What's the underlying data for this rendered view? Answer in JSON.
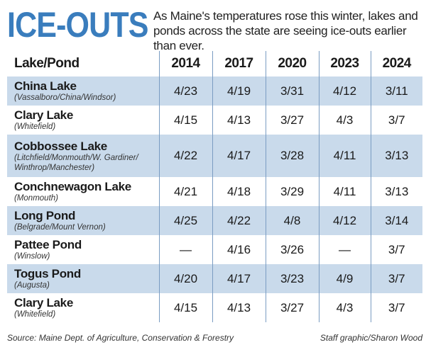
{
  "header": {
    "title": "ICE-OUTS",
    "subtitle": "As Maine's temperatures rose this winter, lakes and ponds across the state are seeing ice-outs earlier than ever."
  },
  "chart_data": {
    "type": "table",
    "columns": [
      "Lake/Pond",
      "2014",
      "2017",
      "2020",
      "2023",
      "2024"
    ],
    "rows": [
      {
        "name": "China Lake",
        "location": "(Vassalboro/China/Windsor)",
        "values": [
          "4/23",
          "4/19",
          "3/31",
          "4/12",
          "3/11"
        ]
      },
      {
        "name": "Clary Lake",
        "location": "(Whitefield)",
        "values": [
          "4/15",
          "4/13",
          "3/27",
          "4/3",
          "3/7"
        ]
      },
      {
        "name": "Cobbossee Lake",
        "location": "(Litchfield/Monmouth/W. Gardiner/ Winthrop/Manchester)",
        "values": [
          "4/22",
          "4/17",
          "3/28",
          "4/11",
          "3/13"
        ]
      },
      {
        "name": "Conchnewagon Lake",
        "location": "(Monmouth)",
        "values": [
          "4/21",
          "4/18",
          "3/29",
          "4/11",
          "3/13"
        ]
      },
      {
        "name": "Long Pond",
        "location": "(Belgrade/Mount Vernon)",
        "values": [
          "4/25",
          "4/22",
          "4/8",
          "4/12",
          "3/14"
        ]
      },
      {
        "name": "Pattee Pond",
        "location": "(Winslow)",
        "values": [
          "—",
          "4/16",
          "3/26",
          "—",
          "3/7"
        ]
      },
      {
        "name": "Togus Pond",
        "location": "(Augusta)",
        "values": [
          "4/20",
          "4/17",
          "3/23",
          "4/9",
          "3/7"
        ]
      },
      {
        "name": "Clary Lake",
        "location": "(Whitefield)",
        "values": [
          "4/15",
          "4/13",
          "3/27",
          "4/3",
          "3/7"
        ]
      }
    ]
  },
  "footer": {
    "source": "Source: Maine Dept. of Agriculture, Conservation & Forestry",
    "credit": "Staff graphic/Sharon Wood"
  },
  "colors": {
    "title": "#3a7dbd",
    "row_shade": "#c9daeb"
  }
}
